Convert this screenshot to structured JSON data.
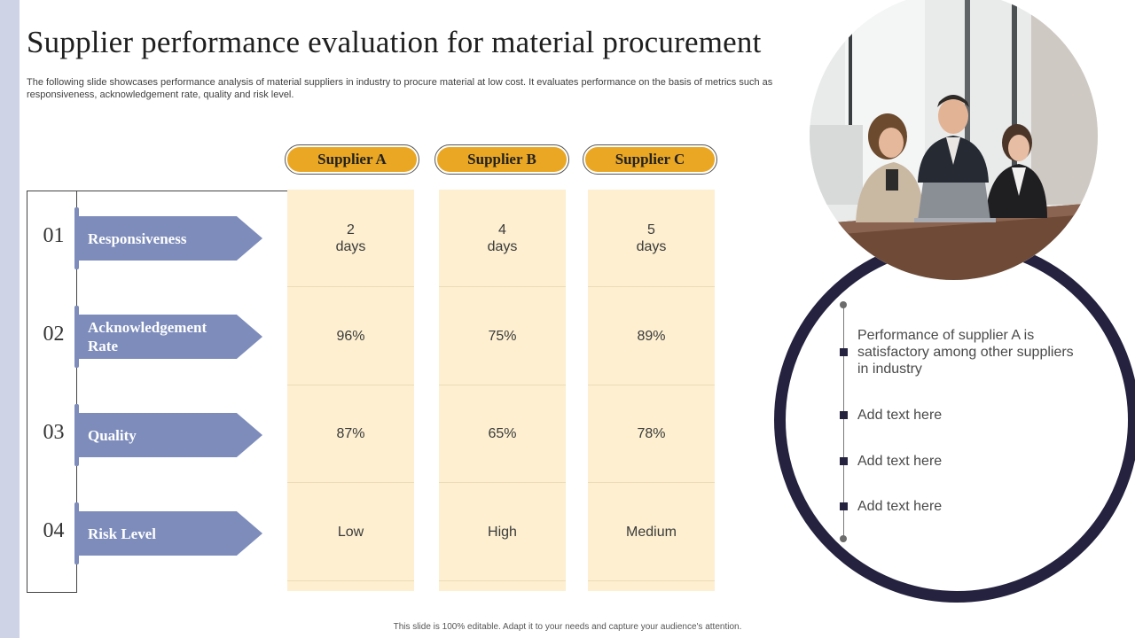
{
  "title": "Supplier performance evaluation for material procurement",
  "subtitle": "The following slide showcases performance analysis of material suppliers in industry to procure material at low cost. It evaluates performance on the basis of metrics such as responsiveness, acknowledgement rate, quality and risk level.",
  "suppliers": [
    "Supplier A",
    "Supplier B",
    "Supplier C"
  ],
  "metrics": [
    {
      "num": "01",
      "label": "Responsiveness"
    },
    {
      "num": "02",
      "label": "Acknowledgement Rate"
    },
    {
      "num": "03",
      "label": "Quality"
    },
    {
      "num": "04",
      "label": "Risk Level"
    }
  ],
  "table": [
    [
      {
        "l1": "2",
        "l2": "days"
      },
      {
        "l1": "96%"
      },
      {
        "l1": "87%"
      },
      {
        "l1": "Low"
      }
    ],
    [
      {
        "l1": "4",
        "l2": "days"
      },
      {
        "l1": "75%"
      },
      {
        "l1": "65%"
      },
      {
        "l1": "High"
      }
    ],
    [
      {
        "l1": "5",
        "l2": "days"
      },
      {
        "l1": "89%"
      },
      {
        "l1": "78%"
      },
      {
        "l1": "Medium"
      }
    ]
  ],
  "notes": [
    "Performance of supplier A is satisfactory among other suppliers in industry",
    "Add text here",
    "Add text here",
    "Add text here"
  ],
  "footer": "This slide is 100% editable. Adapt it to your needs and capture your audience's attention.",
  "colors": {
    "accent": "#eaa723",
    "metric": "#7d8cbb",
    "ring": "#24223f",
    "cell": "#fdefd0"
  },
  "image": "business-meeting-photo"
}
